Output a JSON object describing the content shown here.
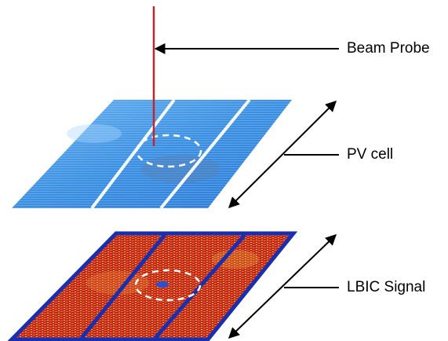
{
  "labels": {
    "beam_probe": "Beam Probe",
    "pv_cell": "PV cell",
    "lbic_signal": "LBIC Signal"
  }
}
